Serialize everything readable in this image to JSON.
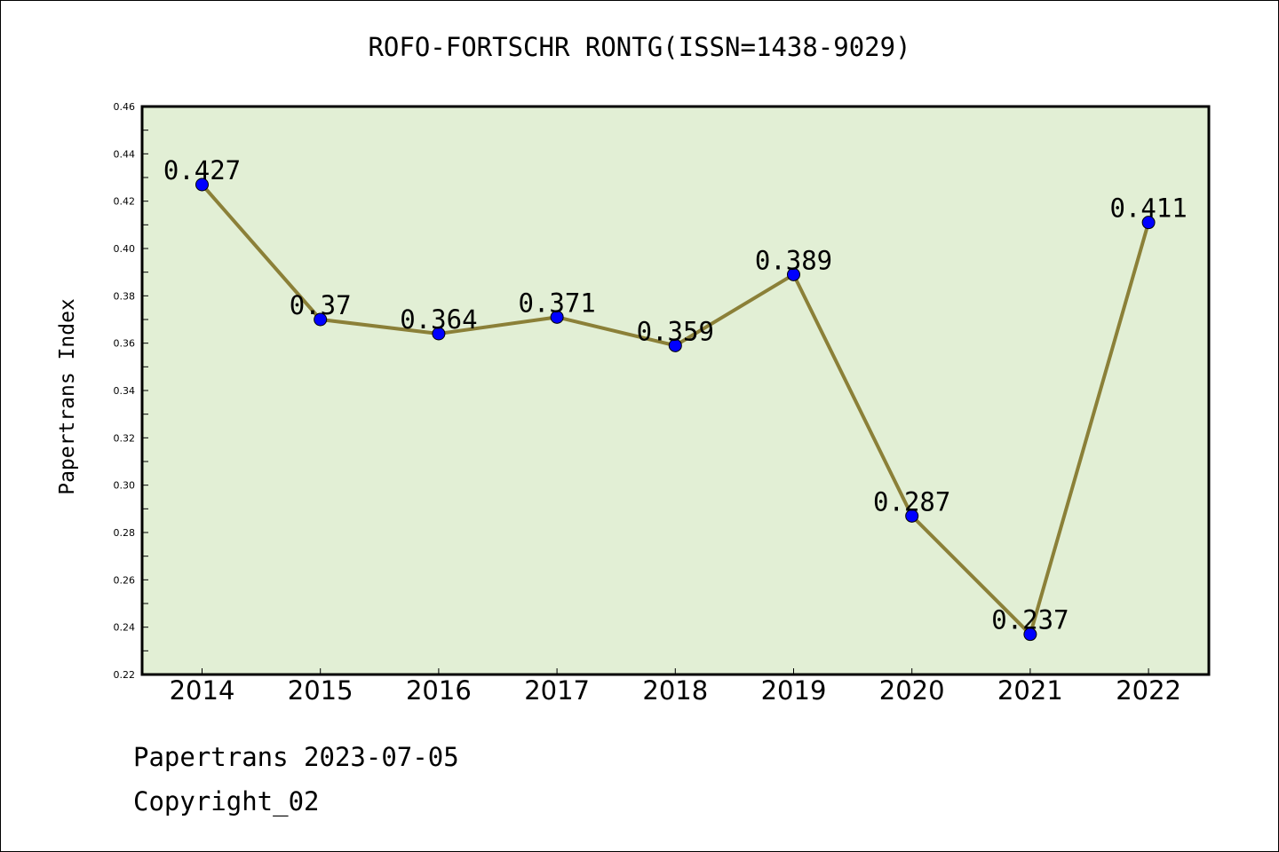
{
  "chart_data": {
    "type": "line",
    "title": "ROFO-FORTSCHR RONTG(ISSN=1438-9029)",
    "xlabel": "",
    "ylabel": "Papertrans Index",
    "categories": [
      "2014",
      "2015",
      "2016",
      "2017",
      "2018",
      "2019",
      "2020",
      "2021",
      "2022"
    ],
    "values": [
      0.427,
      0.37,
      0.364,
      0.371,
      0.359,
      0.389,
      0.287,
      0.237,
      0.411
    ],
    "data_labels": [
      "0.427",
      "0.37",
      "0.364",
      "0.371",
      "0.359",
      "0.389",
      "0.287",
      "0.237",
      "0.411"
    ],
    "ylim": [
      0.22,
      0.46
    ],
    "yticks": [
      "0.22",
      "0.24",
      "0.26",
      "0.28",
      "0.30",
      "0.32",
      "0.34",
      "0.36",
      "0.38",
      "0.40",
      "0.42",
      "0.44",
      "0.46"
    ],
    "grid": false,
    "colors": {
      "plot_background": "#e2efd5",
      "line": "#8b8038",
      "marker": "#0000ff"
    }
  },
  "footer": {
    "line1": "Papertrans 2023-07-05",
    "line2": "Copyright_02"
  }
}
